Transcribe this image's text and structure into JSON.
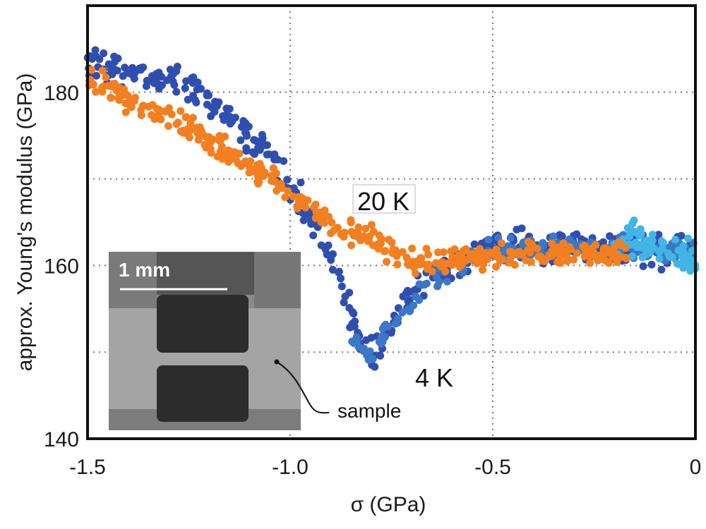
{
  "chart_data": {
    "type": "scatter",
    "title": "",
    "xlabel": "σ (GPa)",
    "ylabel": "approx. Young's modulus (GPa)",
    "xlim": [
      -1.5,
      0
    ],
    "ylim": [
      140,
      190
    ],
    "xticks": [
      -1.5,
      -1.0,
      -0.5,
      0
    ],
    "xtick_labels": [
      "-1.5",
      "-1.0",
      "-0.5",
      "0"
    ],
    "yticks": [
      140,
      160,
      180
    ],
    "ytick_labels": [
      "140",
      "160",
      "180"
    ],
    "grid": true,
    "legend": "none",
    "annotations": [
      {
        "text": "20 K",
        "x": -0.83,
        "y": 167.5
      },
      {
        "text": "4 K",
        "x": -0.68,
        "y": 147.5
      }
    ],
    "inset": {
      "description": "micrograph of sample",
      "scale_bar_label": "1 mm",
      "pointer_label": "sample"
    },
    "series": [
      {
        "name": "4 K (dark blue)",
        "color": "#2f4fb0",
        "trend": [
          [
            -1.5,
            183.5
          ],
          [
            -1.45,
            183
          ],
          [
            -1.4,
            182.5
          ],
          [
            -1.35,
            182
          ],
          [
            -1.3,
            181.5
          ],
          [
            -1.25,
            180.5
          ],
          [
            -1.2,
            179
          ],
          [
            -1.15,
            177
          ],
          [
            -1.1,
            175
          ],
          [
            -1.05,
            172
          ],
          [
            -1.0,
            169
          ],
          [
            -0.95,
            165.5
          ],
          [
            -0.9,
            161
          ],
          [
            -0.87,
            157
          ],
          [
            -0.84,
            153
          ],
          [
            -0.82,
            150.5
          ],
          [
            -0.8,
            149.5
          ],
          [
            -0.78,
            150.5
          ],
          [
            -0.75,
            153
          ],
          [
            -0.72,
            155.5
          ],
          [
            -0.68,
            157.5
          ],
          [
            -0.64,
            159
          ],
          [
            -0.6,
            160.5
          ],
          [
            -0.55,
            161.5
          ],
          [
            -0.5,
            162
          ],
          [
            -0.45,
            162.5
          ],
          [
            -0.4,
            162.5
          ],
          [
            -0.35,
            162.5
          ],
          [
            -0.3,
            162.5
          ],
          [
            -0.25,
            162
          ],
          [
            -0.2,
            162
          ],
          [
            -0.15,
            162
          ],
          [
            -0.1,
            162
          ],
          [
            -0.05,
            161.5
          ],
          [
            0.0,
            161
          ]
        ],
        "spread": 1.8
      },
      {
        "name": "4 K (light blue)",
        "color": "#3b78c8",
        "trend": [
          [
            -0.85,
            151
          ],
          [
            -0.8,
            150
          ],
          [
            -0.75,
            152.5
          ],
          [
            -0.7,
            155.5
          ],
          [
            -0.65,
            158
          ],
          [
            -0.6,
            160
          ],
          [
            -0.5,
            161.5
          ],
          [
            -0.4,
            162
          ],
          [
            -0.3,
            162
          ],
          [
            -0.2,
            162
          ],
          [
            -0.1,
            162
          ],
          [
            0.0,
            161.5
          ]
        ],
        "spread": 1.3
      },
      {
        "name": "4 K (cyan)",
        "color": "#41b6e6",
        "trend": [
          [
            -0.2,
            162
          ],
          [
            -0.15,
            163
          ],
          [
            -0.1,
            162.5
          ],
          [
            -0.05,
            161.5
          ],
          [
            0.0,
            161
          ]
        ],
        "spread": 2.0
      },
      {
        "name": "20 K",
        "color": "#f47f20",
        "trend": [
          [
            -1.5,
            181.5
          ],
          [
            -1.45,
            180.5
          ],
          [
            -1.4,
            179
          ],
          [
            -1.35,
            178
          ],
          [
            -1.3,
            177
          ],
          [
            -1.25,
            176
          ],
          [
            -1.2,
            174.5
          ],
          [
            -1.15,
            173
          ],
          [
            -1.1,
            171.5
          ],
          [
            -1.05,
            170
          ],
          [
            -1.0,
            168
          ],
          [
            -0.95,
            166.5
          ],
          [
            -0.9,
            165
          ],
          [
            -0.85,
            164
          ],
          [
            -0.8,
            163
          ],
          [
            -0.75,
            161.5
          ],
          [
            -0.7,
            160.5
          ],
          [
            -0.65,
            160.5
          ],
          [
            -0.6,
            160.8
          ],
          [
            -0.55,
            161
          ],
          [
            -0.5,
            161.3
          ],
          [
            -0.45,
            161.5
          ],
          [
            -0.4,
            161.5
          ],
          [
            -0.35,
            161.5
          ],
          [
            -0.3,
            161.5
          ],
          [
            -0.25,
            161.3
          ],
          [
            -0.2,
            161.3
          ],
          [
            -0.17,
            161.5
          ]
        ],
        "spread": 1.4
      }
    ]
  }
}
